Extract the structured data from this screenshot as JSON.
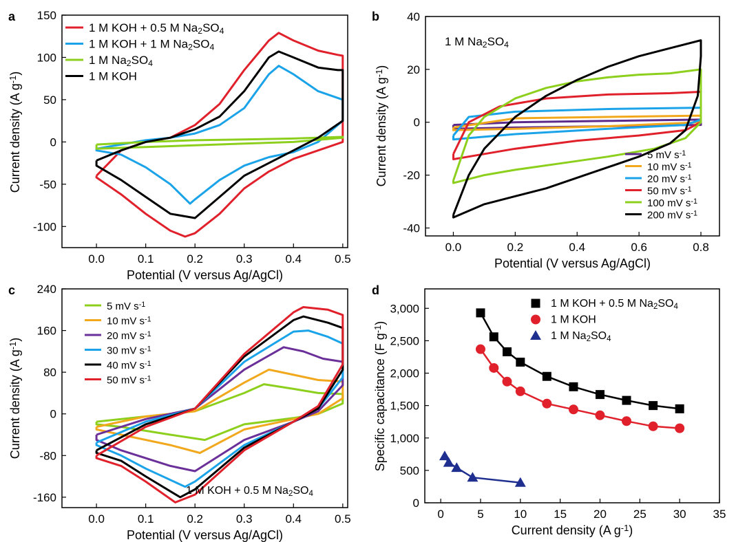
{
  "chart_data": [
    {
      "panel_label": "a",
      "type": "line",
      "xlabel": "Potential (V versus Ag/AgCl)",
      "ylabel": "Current density (A g⁻¹)",
      "xlim": [
        -0.07,
        0.51
      ],
      "ylim": [
        -125,
        150
      ],
      "xticks": [
        0.0,
        0.1,
        0.2,
        0.3,
        0.4,
        0.5
      ],
      "xtick_labels": [
        "0.0",
        "0.1",
        "0.2",
        "0.3",
        "0.4",
        "0.5"
      ],
      "yticks": [
        -100,
        -50,
        0,
        50,
        100,
        150
      ],
      "ytick_labels": [
        "-100",
        "-50",
        "0",
        "50",
        "100",
        "150"
      ],
      "legend_position": "top-left",
      "series": [
        {
          "name": "1 M KOH + 0.5 M Na₂SO₄",
          "color": "#e0202a",
          "x": [
            0.0,
            0.05,
            0.1,
            0.15,
            0.2,
            0.25,
            0.3,
            0.35,
            0.37,
            0.4,
            0.45,
            0.49,
            0.5,
            0.5,
            0.45,
            0.4,
            0.35,
            0.3,
            0.25,
            0.2,
            0.18,
            0.15,
            0.1,
            0.05,
            0.02,
            0.0,
            0.0
          ],
          "y": [
            -40,
            -10,
            0,
            5,
            20,
            45,
            85,
            120,
            129,
            120,
            108,
            103,
            102,
            0,
            -10,
            -20,
            -35,
            -55,
            -85,
            -108,
            -112,
            -105,
            -85,
            -62,
            -50,
            -42,
            -40
          ]
        },
        {
          "name": "1 M KOH + 1 M Na₂SO₄",
          "color": "#1aa3e8",
          "x": [
            0.0,
            0.05,
            0.1,
            0.15,
            0.2,
            0.25,
            0.3,
            0.35,
            0.37,
            0.4,
            0.45,
            0.5,
            0.5,
            0.45,
            0.4,
            0.35,
            0.3,
            0.25,
            0.2,
            0.19,
            0.15,
            0.1,
            0.05,
            0.0,
            0.0
          ],
          "y": [
            -8,
            -3,
            2,
            5,
            10,
            20,
            40,
            80,
            90,
            80,
            60,
            50,
            25,
            0,
            -12,
            -18,
            -28,
            -45,
            -68,
            -73,
            -50,
            -30,
            -15,
            -10,
            -8
          ]
        },
        {
          "name": "1 M Na₂SO₄",
          "color": "#8ccf1c",
          "x": [
            0.0,
            0.1,
            0.2,
            0.3,
            0.4,
            0.5,
            0.5,
            0.4,
            0.3,
            0.2,
            0.1,
            0.0,
            0.0
          ],
          "y": [
            -3,
            0,
            2,
            3,
            4,
            6,
            5,
            0,
            -2,
            -4,
            -6,
            -8,
            -3
          ]
        },
        {
          "name": "1 M KOH",
          "color": "#000000",
          "x": [
            0.0,
            0.05,
            0.1,
            0.15,
            0.2,
            0.25,
            0.3,
            0.35,
            0.37,
            0.4,
            0.45,
            0.49,
            0.5,
            0.5,
            0.45,
            0.4,
            0.35,
            0.3,
            0.25,
            0.2,
            0.15,
            0.1,
            0.05,
            0.0,
            0.0
          ],
          "y": [
            -22,
            -10,
            0,
            5,
            15,
            30,
            60,
            100,
            107,
            100,
            88,
            85,
            85,
            25,
            5,
            -10,
            -25,
            -40,
            -65,
            -90,
            -85,
            -65,
            -45,
            -28,
            -22
          ]
        }
      ]
    },
    {
      "panel_label": "b",
      "type": "line",
      "annotation": "1 M Na₂SO₄",
      "xlabel": "Potential (V versus Ag/AgCl)",
      "ylabel": "Current density (A g⁻¹)",
      "xlim": [
        -0.09,
        0.86
      ],
      "ylim": [
        -43,
        40
      ],
      "xticks": [
        0.0,
        0.2,
        0.4,
        0.6,
        0.8
      ],
      "xtick_labels": [
        "0.0",
        "0.2",
        "0.4",
        "0.6",
        "0.8"
      ],
      "yticks": [
        -40,
        -20,
        0,
        20,
        40
      ],
      "ytick_labels": [
        "-40",
        "-20",
        "0",
        "20",
        "40"
      ],
      "legend_position": "bottom-right",
      "series": [
        {
          "name": "5 mV s⁻¹",
          "color": "#5b2a8a",
          "x": [
            0.0,
            0.2,
            0.5,
            0.8,
            0.8,
            0.5,
            0.2,
            0.0,
            0.0
          ],
          "y": [
            -1,
            0,
            0.5,
            1,
            -1,
            -1.5,
            -2,
            -2.5,
            -1
          ]
        },
        {
          "name": "10 mV s⁻¹",
          "color": "#f2a81d",
          "x": [
            0.0,
            0.2,
            0.5,
            0.8,
            0.8,
            0.5,
            0.2,
            0.0,
            0.0
          ],
          "y": [
            -2,
            1.5,
            2,
            2.5,
            0,
            -1.5,
            -2.5,
            -3,
            -2
          ]
        },
        {
          "name": "20 mV s⁻¹",
          "color": "#1aa3e8",
          "x": [
            0.0,
            0.05,
            0.2,
            0.5,
            0.8,
            0.8,
            0.75,
            0.5,
            0.2,
            0.05,
            0.0,
            0.0
          ],
          "y": [
            -5,
            2,
            4,
            5,
            5.5,
            1,
            -1,
            -2.5,
            -4.5,
            -6,
            -6.5,
            -5
          ]
        },
        {
          "name": "50 mV s⁻¹",
          "color": "#e0202a",
          "x": [
            0.0,
            0.05,
            0.15,
            0.3,
            0.5,
            0.7,
            0.8,
            0.8,
            0.75,
            0.6,
            0.4,
            0.2,
            0.05,
            0.0,
            0.0
          ],
          "y": [
            -12,
            0,
            6,
            9,
            10.5,
            11,
            11.5,
            0,
            -3,
            -5,
            -7,
            -10,
            -13,
            -14,
            -12
          ]
        },
        {
          "name": "100 mV s⁻¹",
          "color": "#8ccf1c",
          "x": [
            0.0,
            0.05,
            0.1,
            0.2,
            0.3,
            0.4,
            0.5,
            0.6,
            0.7,
            0.8,
            0.8,
            0.75,
            0.65,
            0.5,
            0.35,
            0.2,
            0.1,
            0.0,
            0.0
          ],
          "y": [
            -22,
            -5,
            2,
            9,
            13,
            15.5,
            17,
            18,
            18.5,
            20,
            0,
            -6,
            -10,
            -13,
            -15.5,
            -18,
            -20,
            -23,
            -22
          ]
        },
        {
          "name": "200 mV s⁻¹",
          "color": "#000000",
          "x": [
            0.0,
            0.05,
            0.1,
            0.2,
            0.3,
            0.4,
            0.5,
            0.6,
            0.7,
            0.8,
            0.8,
            0.79,
            0.75,
            0.7,
            0.6,
            0.5,
            0.4,
            0.3,
            0.2,
            0.1,
            0.0,
            0.0
          ],
          "y": [
            -35,
            -20,
            -10,
            2,
            10,
            16,
            21,
            25,
            28,
            31,
            25,
            10,
            -3,
            -8,
            -13,
            -17,
            -21,
            -25,
            -28,
            -31,
            -36,
            -35
          ]
        }
      ]
    },
    {
      "panel_label": "c",
      "type": "line",
      "annotation": "1 M KOH + 0.5 M Na₂SO₄",
      "xlabel": "Potential (V versus Ag/AgCl)",
      "ylabel": "Current density (A g⁻¹)",
      "xlim": [
        -0.07,
        0.51
      ],
      "ylim": [
        -180,
        240
      ],
      "xticks": [
        0.0,
        0.1,
        0.2,
        0.3,
        0.4,
        0.5
      ],
      "xtick_labels": [
        "0.0",
        "0.1",
        "0.2",
        "0.3",
        "0.4",
        "0.5"
      ],
      "yticks": [
        -160,
        -80,
        0,
        80,
        160,
        240
      ],
      "ytick_labels": [
        "-160",
        "-80",
        "0",
        "80",
        "160",
        "240"
      ],
      "legend_position": "top-left",
      "series": [
        {
          "name": "5 mV s⁻¹",
          "color": "#8ccf1c",
          "x": [
            0.0,
            0.1,
            0.2,
            0.3,
            0.34,
            0.4,
            0.45,
            0.5,
            0.5,
            0.45,
            0.4,
            0.3,
            0.22,
            0.15,
            0.05,
            0.0,
            0.0
          ],
          "y": [
            -15,
            -5,
            5,
            40,
            57,
            48,
            40,
            38,
            20,
            0,
            -8,
            -20,
            -50,
            -40,
            -25,
            -20,
            -15
          ]
        },
        {
          "name": "10 mV s⁻¹",
          "color": "#f2a81d",
          "x": [
            0.0,
            0.1,
            0.2,
            0.3,
            0.35,
            0.4,
            0.45,
            0.5,
            0.5,
            0.45,
            0.4,
            0.3,
            0.21,
            0.15,
            0.05,
            0.0,
            0.0
          ],
          "y": [
            -25,
            -5,
            5,
            60,
            85,
            75,
            65,
            62,
            30,
            0,
            -10,
            -30,
            -75,
            -60,
            -40,
            -30,
            -25
          ]
        },
        {
          "name": "20 mV s⁻¹",
          "color": "#6a2f98",
          "x": [
            0.0,
            0.1,
            0.2,
            0.3,
            0.38,
            0.42,
            0.46,
            0.5,
            0.5,
            0.45,
            0.4,
            0.3,
            0.2,
            0.15,
            0.05,
            0.0,
            0.0
          ],
          "y": [
            -40,
            -10,
            10,
            85,
            128,
            120,
            106,
            100,
            55,
            5,
            -15,
            -50,
            -110,
            -100,
            -70,
            -50,
            -40
          ]
        },
        {
          "name": "30 mV s⁻¹",
          "color": "#1aa3e8",
          "x": [
            0.0,
            0.1,
            0.2,
            0.3,
            0.4,
            0.43,
            0.47,
            0.5,
            0.5,
            0.45,
            0.4,
            0.3,
            0.2,
            0.18,
            0.1,
            0.05,
            0.0,
            0.0
          ],
          "y": [
            -55,
            -15,
            10,
            100,
            158,
            160,
            148,
            135,
            70,
            10,
            -15,
            -60,
            -130,
            -140,
            -105,
            -80,
            -60,
            -55
          ]
        },
        {
          "name": "40 mV s⁻¹",
          "color": "#000000",
          "x": [
            0.0,
            0.1,
            0.2,
            0.3,
            0.4,
            0.42,
            0.47,
            0.5,
            0.5,
            0.45,
            0.4,
            0.3,
            0.2,
            0.17,
            0.1,
            0.05,
            0.0,
            0.0
          ],
          "y": [
            -70,
            -20,
            10,
            110,
            180,
            187,
            175,
            165,
            85,
            10,
            -15,
            -65,
            -145,
            -160,
            -120,
            -90,
            -75,
            -70
          ]
        },
        {
          "name": "50 mV s⁻¹",
          "color": "#e0202a",
          "x": [
            0.0,
            0.1,
            0.2,
            0.3,
            0.4,
            0.42,
            0.47,
            0.5,
            0.5,
            0.45,
            0.4,
            0.3,
            0.2,
            0.16,
            0.1,
            0.05,
            0.0,
            0.0
          ],
          "y": [
            -80,
            -25,
            10,
            115,
            195,
            205,
            200,
            190,
            95,
            15,
            -15,
            -70,
            -155,
            -170,
            -130,
            -100,
            -85,
            -80
          ]
        }
      ]
    },
    {
      "panel_label": "d",
      "type": "scatter",
      "xlabel": "Current density (A g⁻¹)",
      "ylabel": "Specific capacitance (F g⁻¹)",
      "xlim": [
        -2,
        35
      ],
      "ylim": [
        0,
        3300
      ],
      "xticks": [
        0,
        5,
        10,
        15,
        20,
        25,
        30,
        35
      ],
      "xtick_labels": [
        "0",
        "5",
        "10",
        "15",
        "20",
        "25",
        "30",
        "35"
      ],
      "yticks": [
        0,
        500,
        1000,
        1500,
        2000,
        2500,
        3000
      ],
      "ytick_labels": [
        "0",
        "500",
        "1,000",
        "1,500",
        "2,000",
        "2,500",
        "3,000"
      ],
      "legend_position": "top-right",
      "series": [
        {
          "name": "1 M KOH + 0.5 M Na₂SO₄",
          "color": "#000000",
          "marker": "square",
          "x": [
            5,
            6.67,
            8.33,
            10,
            13.33,
            16.67,
            20,
            23.33,
            26.67,
            30
          ],
          "y": [
            2930,
            2560,
            2330,
            2170,
            1950,
            1790,
            1670,
            1580,
            1500,
            1450
          ]
        },
        {
          "name": "1 M KOH",
          "color": "#e0202a",
          "marker": "circle",
          "x": [
            5,
            6.67,
            8.33,
            10,
            13.33,
            16.67,
            20,
            23.33,
            26.67,
            30
          ],
          "y": [
            2370,
            2080,
            1870,
            1720,
            1530,
            1440,
            1350,
            1260,
            1180,
            1150
          ]
        },
        {
          "name": "1 M Na₂SO₄",
          "color": "#1f2f8f",
          "marker": "triangle",
          "x": [
            0.5,
            1,
            2,
            4,
            10
          ],
          "y": [
            720,
            620,
            540,
            390,
            310
          ]
        }
      ]
    }
  ]
}
